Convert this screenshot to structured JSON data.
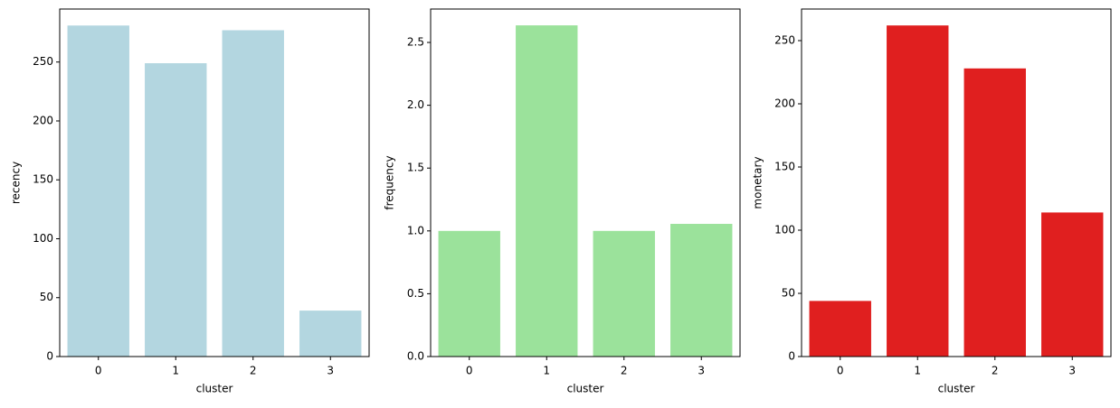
{
  "chart_data": [
    {
      "type": "bar",
      "categories": [
        "0",
        "1",
        "2",
        "3"
      ],
      "values": [
        281,
        249,
        277,
        39
      ],
      "color": "#b3d6e0",
      "xlabel": "cluster",
      "ylabel": "recency",
      "ylim": [
        0,
        295
      ],
      "yticks": [
        0,
        50,
        100,
        150,
        200,
        250
      ]
    },
    {
      "type": "bar",
      "categories": [
        "0",
        "1",
        "2",
        "3"
      ],
      "values": [
        1.0,
        2.636,
        1.0,
        1.056
      ],
      "color": "#9be29b",
      "xlabel": "cluster",
      "ylabel": "frequency",
      "ylim": [
        0,
        2.766
      ],
      "yticks": [
        {
          "value": 0,
          "label": "0.0"
        },
        0.5,
        {
          "value": 1,
          "label": "1.0"
        },
        1.5,
        {
          "value": 2,
          "label": "2.0"
        },
        2.5
      ]
    },
    {
      "type": "bar",
      "categories": [
        "0",
        "1",
        "2",
        "3"
      ],
      "values": [
        44,
        262,
        228,
        114
      ],
      "color": "#e01f1f",
      "xlabel": "cluster",
      "ylabel": "monetary",
      "ylim": [
        0,
        275
      ],
      "yticks": [
        0,
        50,
        100,
        150,
        200,
        250
      ]
    }
  ]
}
